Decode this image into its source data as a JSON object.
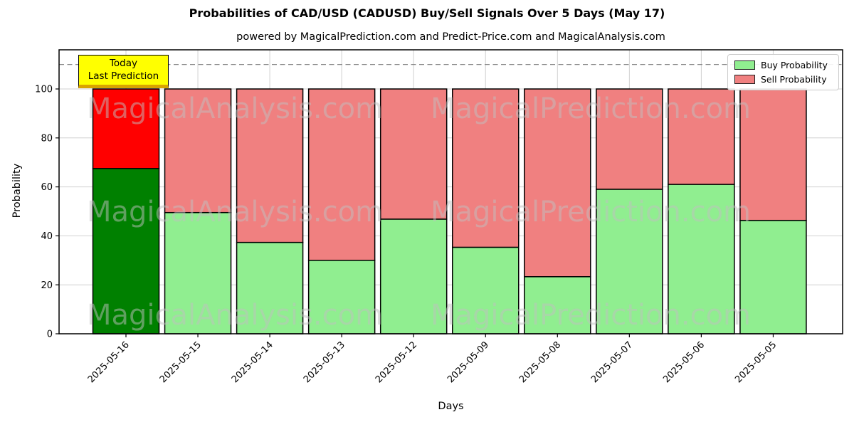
{
  "figure": {
    "title": "Probabilities of CAD/USD (CADUSD) Buy/Sell Signals Over 5 Days (May 17)",
    "subtitle": "powered by MagicalPrediction.com and Predict-Price.com and MagicalAnalysis.com"
  },
  "annotation_box": {
    "line1": "Today",
    "line2": "Last Prediction",
    "bg_color": "#ffff00"
  },
  "legend": {
    "position": "upper right",
    "items": [
      {
        "label": "Buy Probability",
        "color": "#90ee90"
      },
      {
        "label": "Sell Probability",
        "color": "#f08080"
      }
    ]
  },
  "watermarks": {
    "left_text": "MagicalAnalysis.com",
    "right_text": "MagicalPrediction.com",
    "color": "#c0c0c0"
  },
  "chart_data": {
    "type": "bar",
    "stacked": true,
    "title": "Probabilities of CAD/USD (CADUSD) Buy/Sell Signals Over 5 Days (May 17)",
    "xlabel": "Days",
    "ylabel": "Probability",
    "categories": [
      "2025-05-16",
      "2025-05-15",
      "2025-05-14",
      "2025-05-13",
      "2025-05-12",
      "2025-05-09",
      "2025-05-08",
      "2025-05-07",
      "2025-05-06",
      "2025-05-05"
    ],
    "series": [
      {
        "name": "Buy Probability",
        "values": [
          67.5,
          49.5,
          37.3,
          30.0,
          46.8,
          35.3,
          23.3,
          59.0,
          61.0,
          46.3
        ],
        "color": "#90ee90",
        "highlight_color": "#008000"
      },
      {
        "name": "Sell Probability",
        "values": [
          32.5,
          50.5,
          62.7,
          70.0,
          53.2,
          64.7,
          76.7,
          41.0,
          39.0,
          53.7
        ],
        "color": "#f08080",
        "highlight_color": "#ff0000"
      }
    ],
    "highlight_index": 0,
    "bar_edge_color": "#000000",
    "yticks": [
      0,
      20,
      40,
      60,
      80,
      100
    ],
    "ylim": [
      0,
      116
    ],
    "dashed_line_y": 110,
    "grid": true,
    "grid_color": "#d0d0d0",
    "dashed_line_color": "#8a8a8a"
  }
}
